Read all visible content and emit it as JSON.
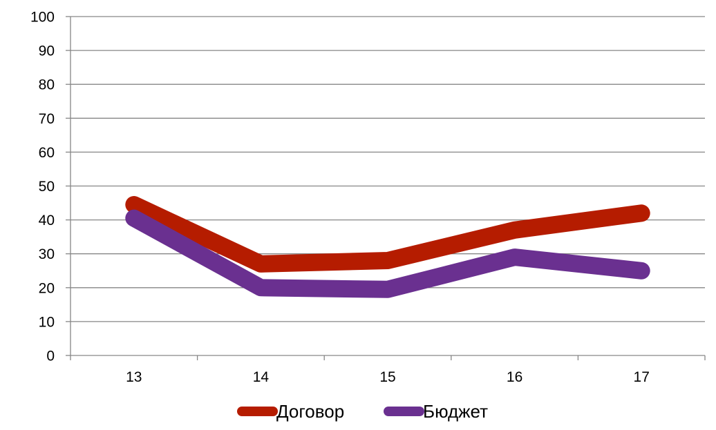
{
  "colors": {
    "dogovor": "#b51c00",
    "byudzhet": "#6a3090",
    "grid": "#868686"
  },
  "chart_data": {
    "type": "line",
    "title": "",
    "xlabel": "",
    "ylabel": "",
    "categories": [
      "13",
      "14",
      "15",
      "16",
      "17"
    ],
    "ylim": [
      0,
      100
    ],
    "yticks": [
      "0",
      "10",
      "20",
      "30",
      "40",
      "50",
      "60",
      "70",
      "80",
      "90",
      "100"
    ],
    "grid": true,
    "legend_position": "bottom",
    "series": [
      {
        "name": "Договор",
        "values": [
          44.5,
          27,
          28,
          37,
          42
        ]
      },
      {
        "name": "Бюджет",
        "values": [
          40.5,
          20,
          19.5,
          29,
          25
        ]
      }
    ]
  }
}
